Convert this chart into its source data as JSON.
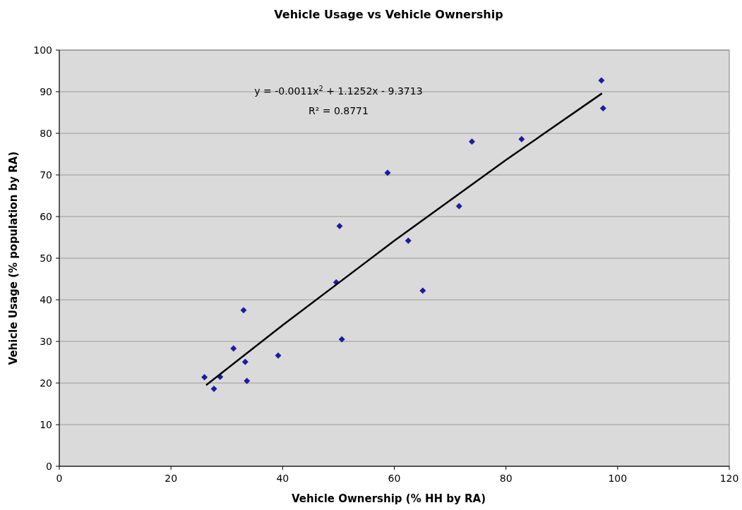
{
  "chart_data": {
    "type": "scatter",
    "title": "Vehicle Usage vs Vehicle Ownership",
    "xlabel": "Vehicle Ownership (% HH by RA)",
    "ylabel": "Vehicle Usage (% population by RA)",
    "xlim": [
      0,
      120
    ],
    "xticks": [
      0,
      20,
      40,
      60,
      80,
      100,
      120
    ],
    "ylim": [
      0,
      100
    ],
    "yticks": [
      0,
      10,
      20,
      30,
      40,
      50,
      60,
      70,
      80,
      90,
      100
    ],
    "grid": "y",
    "marker": "diamond",
    "annotations": [
      "y = -0.0011x$^{2}$ + 1.1252x - 9.3713",
      "R² = 0.8771"
    ],
    "series": [
      {
        "color": "#1c1c9e",
        "x": [
          26.0,
          27.7,
          28.8,
          31.2,
          33.0,
          33.3,
          33.6,
          39.2,
          49.6,
          50.2,
          50.6,
          58.8,
          62.5,
          65.1,
          71.6,
          73.9,
          82.8,
          97.1,
          97.4
        ],
        "values": [
          21.4,
          18.6,
          21.5,
          28.3,
          37.5,
          25.1,
          20.5,
          26.6,
          44.2,
          57.7,
          30.5,
          70.5,
          54.2,
          42.2,
          62.5,
          78.0,
          78.6,
          92.7,
          86.0
        ]
      },
      {
        "type": "line",
        "color": "#000000",
        "line_style": "solid",
        "marker": "none",
        "x": [
          26.3,
          40,
          60,
          80,
          97.2
        ],
        "values": [
          19.5,
          33.9,
          54.2,
          73.6,
          89.6
        ]
      }
    ]
  }
}
